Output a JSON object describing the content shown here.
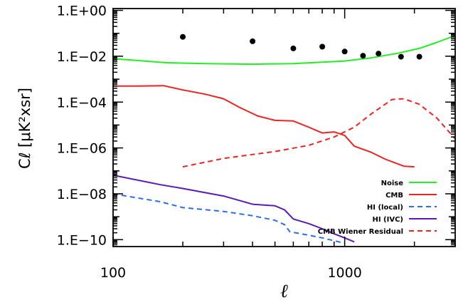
{
  "chart_data": {
    "type": "line",
    "title": "",
    "xlabel": "ℓ",
    "ylabel": "Cℓ [μK²xsr]",
    "xscale": "log",
    "yscale": "log",
    "xlim": [
      100,
      3000
    ],
    "ylim": [
      5e-11,
      1.2
    ],
    "grid": false,
    "legend_position": "bottom-right",
    "x_ticks": [
      {
        "value": 100,
        "label": "100"
      },
      {
        "value": 1000,
        "label": "1000"
      }
    ],
    "y_ticks": [
      {
        "value": 1,
        "label": "1.E+00"
      },
      {
        "value": 0.01,
        "label": "1.E−02"
      },
      {
        "value": 0.0001,
        "label": "1.E−04"
      },
      {
        "value": 1e-06,
        "label": "1.E−06"
      },
      {
        "value": 1e-08,
        "label": "1.E−08"
      },
      {
        "value": 1e-10,
        "label": "1.E−10"
      }
    ],
    "series": [
      {
        "name": "Noise",
        "color": "#22ee22",
        "dash": "solid",
        "kind": "line",
        "points": [
          [
            100,
            0.0078
          ],
          [
            120,
            0.0068
          ],
          [
            170,
            0.0052
          ],
          [
            250,
            0.0048
          ],
          [
            400,
            0.0045
          ],
          [
            600,
            0.0048
          ],
          [
            800,
            0.0055
          ],
          [
            1000,
            0.0062
          ],
          [
            1300,
            0.0085
          ],
          [
            1700,
            0.0135
          ],
          [
            2100,
            0.022
          ],
          [
            2500,
            0.04
          ],
          [
            3000,
            0.08
          ]
        ]
      },
      {
        "name": "CMB",
        "color": "#ee2222",
        "dash": "solid",
        "kind": "line",
        "points": [
          [
            100,
            0.0005
          ],
          [
            130,
            0.0005
          ],
          [
            165,
            0.00052
          ],
          [
            200,
            0.00034
          ],
          [
            250,
            0.00022
          ],
          [
            300,
            0.00014
          ],
          [
            350,
            6e-05
          ],
          [
            420,
            2.5e-05
          ],
          [
            500,
            1.6e-05
          ],
          [
            600,
            1.5e-05
          ],
          [
            700,
            8e-06
          ],
          [
            800,
            4.5e-06
          ],
          [
            900,
            5e-06
          ],
          [
            1000,
            3.5e-06
          ],
          [
            1100,
            1.2e-06
          ],
          [
            1300,
            6.5e-07
          ],
          [
            1500,
            3.2e-07
          ],
          [
            1800,
            1.6e-07
          ],
          [
            2000,
            1.5e-07
          ]
        ]
      },
      {
        "name": "HI (local)",
        "color": "#2a6eea",
        "dash": "dashed",
        "kind": "line",
        "points": [
          [
            100,
            1e-08
          ],
          [
            160,
            4.5e-09
          ],
          [
            200,
            2.5e-09
          ],
          [
            300,
            1.7e-09
          ],
          [
            400,
            1.1e-09
          ],
          [
            500,
            7e-10
          ],
          [
            550,
            4.5e-10
          ],
          [
            580,
            2.2e-10
          ],
          [
            650,
            1.8e-10
          ],
          [
            800,
            1.2e-10
          ],
          [
            900,
            9e-11
          ],
          [
            1000,
            7e-11
          ]
        ]
      },
      {
        "name": "HI (IVC)",
        "color": "#5a1ab4",
        "dash": "solid",
        "kind": "line",
        "points": [
          [
            100,
            6.5e-08
          ],
          [
            160,
            2.5e-08
          ],
          [
            200,
            1.7e-08
          ],
          [
            300,
            8e-09
          ],
          [
            400,
            3.5e-09
          ],
          [
            500,
            3e-09
          ],
          [
            550,
            2e-09
          ],
          [
            600,
            8e-10
          ],
          [
            700,
            5e-10
          ],
          [
            800,
            3e-10
          ],
          [
            900,
            1.8e-10
          ],
          [
            1000,
            1.2e-10
          ],
          [
            1100,
            8e-11
          ]
        ]
      },
      {
        "name": "CMB Wiener Residual",
        "color": "#ee2222",
        "dash": "dashed",
        "kind": "line",
        "points": [
          [
            200,
            1.5e-07
          ],
          [
            300,
            3.5e-07
          ],
          [
            500,
            7e-07
          ],
          [
            700,
            1.3e-06
          ],
          [
            900,
            3e-06
          ],
          [
            1100,
            8e-06
          ],
          [
            1300,
            3e-05
          ],
          [
            1600,
            0.00013
          ],
          [
            1800,
            0.00014
          ],
          [
            2100,
            8e-05
          ],
          [
            2500,
            2e-05
          ],
          [
            3000,
            2.5e-06
          ]
        ]
      },
      {
        "name": "",
        "color": "#000000",
        "kind": "scatter",
        "points": [
          [
            200,
            0.07
          ],
          [
            400,
            0.045
          ],
          [
            600,
            0.022
          ],
          [
            800,
            0.026
          ],
          [
            1000,
            0.016
          ],
          [
            1200,
            0.0105
          ],
          [
            1400,
            0.013
          ],
          [
            1750,
            0.0095
          ],
          [
            2100,
            0.0095
          ]
        ]
      }
    ]
  }
}
